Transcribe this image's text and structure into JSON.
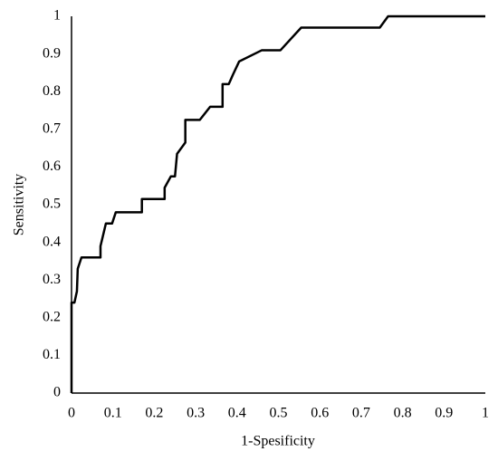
{
  "chart_data": {
    "type": "line",
    "x_label": "1-Spesificity",
    "y_label": "Sensitivity",
    "series": [
      {
        "color": "#000000",
        "x": [
          0,
          0,
          0.007,
          0.013,
          0.015,
          0.024,
          0.07,
          0.07,
          0.083,
          0.098,
          0.107,
          0.17,
          0.17,
          0.225,
          0.225,
          0.24,
          0.25,
          0.255,
          0.275,
          0.275,
          0.31,
          0.335,
          0.365,
          0.365,
          0.38,
          0.39,
          0.405,
          0.46,
          0.505,
          0.53,
          0.555,
          0.745,
          0.765,
          1
        ],
        "values": [
          0,
          0.24,
          0.24,
          0.27,
          0.33,
          0.36,
          0.36,
          0.39,
          0.45,
          0.45,
          0.48,
          0.48,
          0.515,
          0.515,
          0.545,
          0.575,
          0.575,
          0.635,
          0.665,
          0.725,
          0.725,
          0.76,
          0.76,
          0.82,
          0.82,
          0.845,
          0.88,
          0.91,
          0.91,
          0.94,
          0.97,
          0.97,
          1,
          1
        ]
      }
    ],
    "xlim": [
      0,
      1
    ],
    "xticks": [
      0,
      0.1,
      0.2,
      0.3,
      0.4,
      0.5,
      0.6,
      0.7,
      0.8,
      0.9,
      1
    ],
    "ylim": [
      0,
      1
    ],
    "yticks": [
      0,
      0.1,
      0.2,
      0.3,
      0.4,
      0.5,
      0.6,
      0.7,
      0.8,
      0.9,
      1
    ]
  }
}
